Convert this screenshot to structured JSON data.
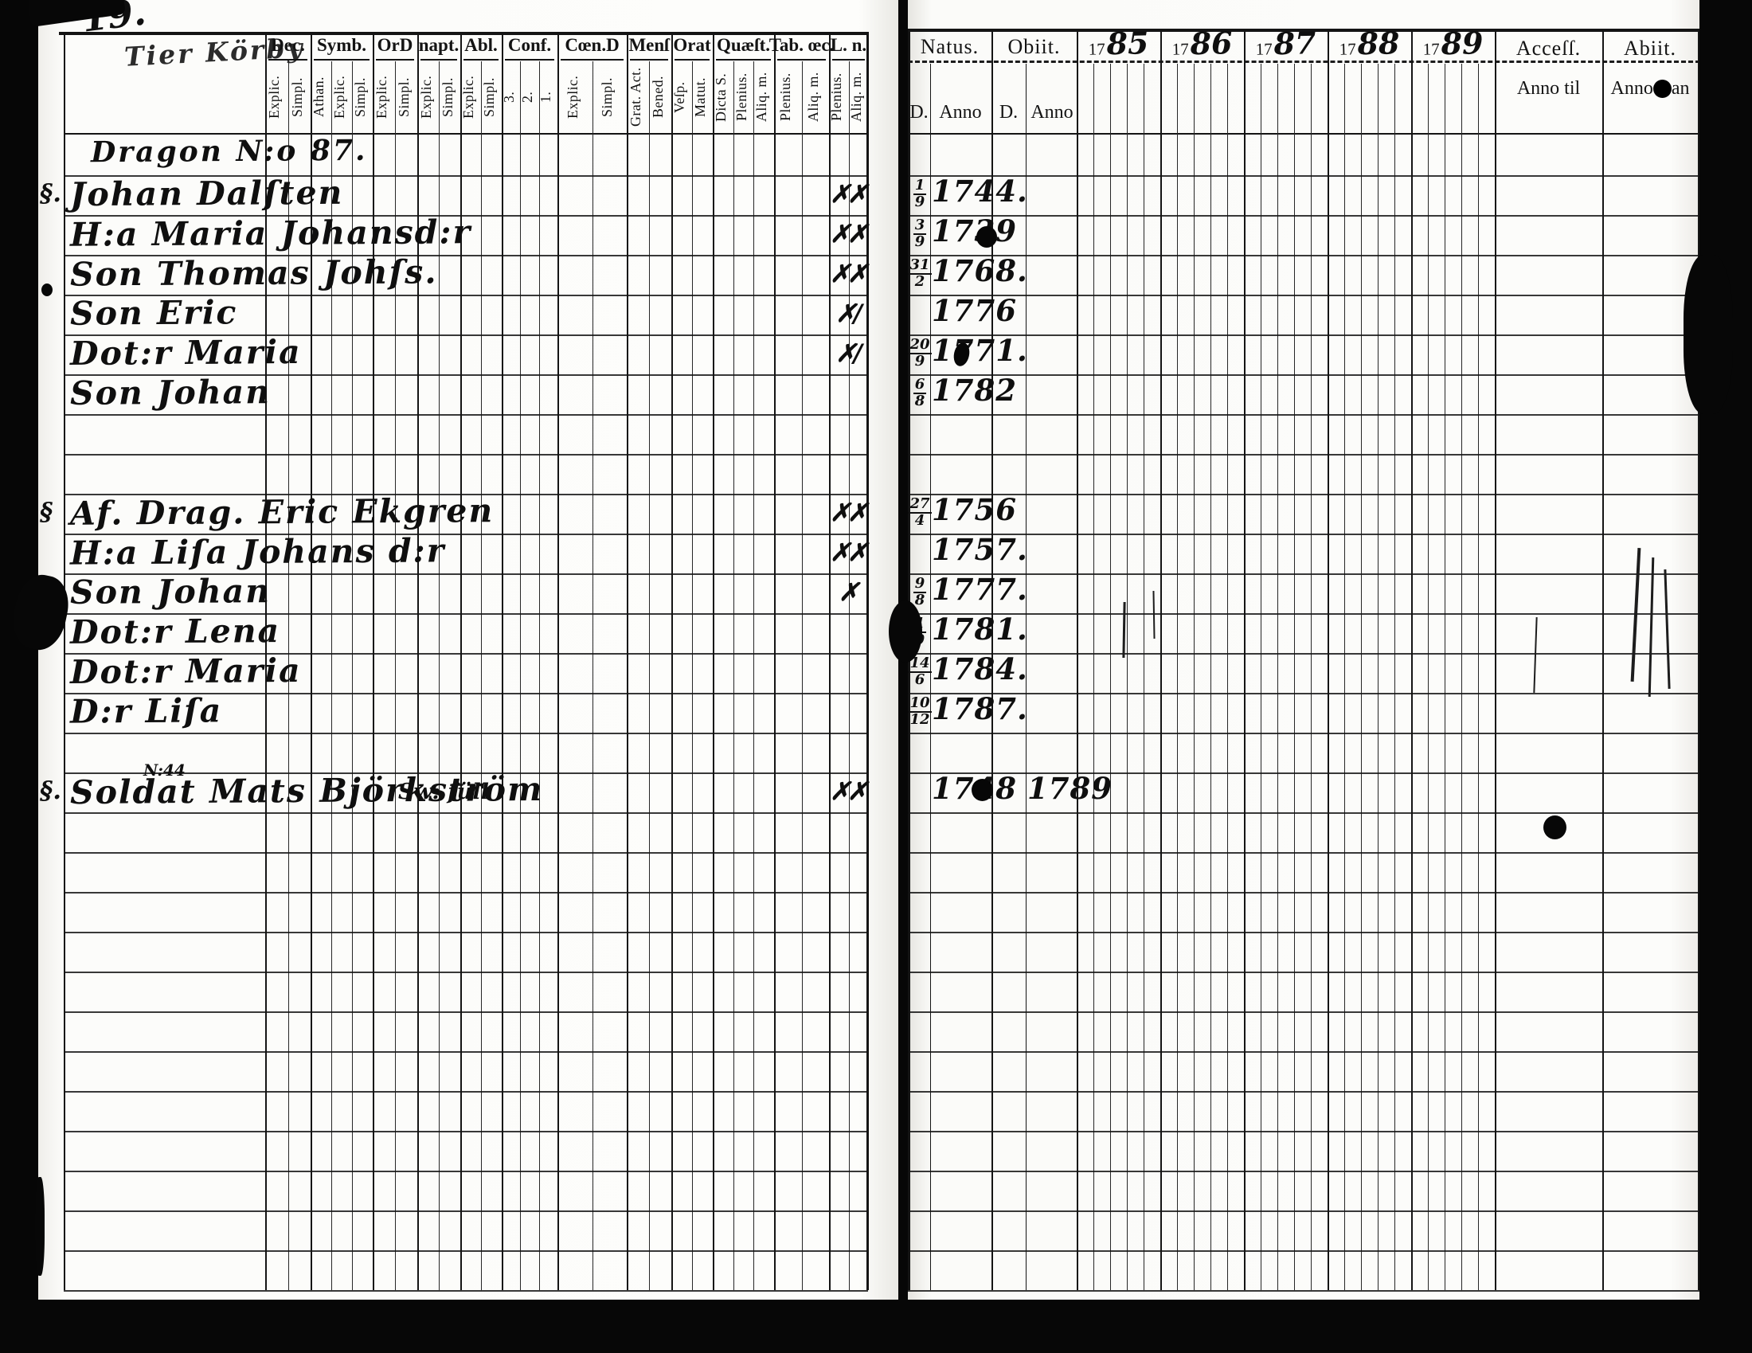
{
  "document": {
    "page_number": "19."
  },
  "left_page": {
    "script_title": "Tier Körby",
    "column_groups": [
      {
        "label": "Dec.",
        "subs": [
          "Explic.",
          "Simpl."
        ]
      },
      {
        "label": "Symb.",
        "subs": [
          "Athan.",
          "Explic.",
          "Simpl."
        ]
      },
      {
        "label": "OrD",
        "subs": [
          "Explic.",
          "Simpl."
        ]
      },
      {
        "label": "napt.",
        "subs": [
          "Explic.",
          "Simpl."
        ]
      },
      {
        "label": "Abl.",
        "subs": [
          "Explic.",
          "Simpl."
        ]
      },
      {
        "label": "Conf.",
        "subs": [
          "3.",
          "2.",
          "1."
        ]
      },
      {
        "label": "Cœn.D",
        "subs": [
          "Explic.",
          "Simpl."
        ]
      },
      {
        "label": "Menſ",
        "subs": [
          "Grat. Act.",
          "Bened."
        ]
      },
      {
        "label": "Orat",
        "subs": [
          "Veſp.",
          "Matut."
        ]
      },
      {
        "label": "Quæſt.",
        "subs": [
          "Dicta S.",
          "Plenius.",
          "Aliq. m."
        ]
      },
      {
        "label": "Tab. œc.",
        "subs": [
          "Plenius.",
          "Aliq. m."
        ]
      },
      {
        "label": "L. n.",
        "subs": [
          "Plenius.",
          "Aliq. m."
        ]
      }
    ],
    "entries": [
      {
        "row": 0,
        "name": "Dragon N:o 87."
      },
      {
        "row": 1,
        "margin": "§.",
        "name": "Johan Dalſten",
        "ln": "✗✗",
        "natus_d": "1/9",
        "natus_anno": "1744."
      },
      {
        "row": 2,
        "name": "H:a Maria Johansd:r",
        "ln": "✗✗",
        "natus_d": "3/9",
        "natus_anno": "1739"
      },
      {
        "row": 3,
        "name": "Son Thomas Johſs.",
        "ln": "✗✗",
        "natus_d": "31/2",
        "natus_anno": "1768."
      },
      {
        "row": 4,
        "name": "Son Eric",
        "ln": "✗/",
        "natus_anno": "1776"
      },
      {
        "row": 5,
        "name": "Dot:r Maria",
        "ln": "✗/",
        "natus_d": "20/9",
        "natus_anno": "1771."
      },
      {
        "row": 6,
        "name": "Son Johan",
        "natus_d": "6/8",
        "natus_anno": "1782"
      },
      {
        "row": 9,
        "margin": "§",
        "name": "Af. Drag. Eric Ekgren",
        "ln": "✗✗",
        "natus_d": "27/4",
        "natus_anno": "1756"
      },
      {
        "row": 10,
        "name": "H:a Liſa Johans d:r",
        "ln": "✗✗",
        "natus_anno": "1757."
      },
      {
        "row": 11,
        "name": "Son Johan",
        "ln": "✗",
        "natus_d": "9/8",
        "natus_anno": "1777."
      },
      {
        "row": 12,
        "name": "Dot:r Lena",
        "natus_d": "1/9",
        "natus_anno": "1781."
      },
      {
        "row": 13,
        "name": "Dot:r Maria",
        "natus_d": "14/6",
        "natus_anno": "1784."
      },
      {
        "row": 14,
        "name": "D:r Liſa",
        "natus_d": "10/12",
        "natus_anno": "1787."
      },
      {
        "row": 16,
        "margin": "§.",
        "name": "Soldat Mats Björkström",
        "name_super": "N:44",
        "annotation": "Sw: füll",
        "ln": "✗✗",
        "natus_anno": "1748",
        "obiit_anno": "1789"
      }
    ]
  },
  "right_page": {
    "natus": {
      "label": "Natus.",
      "day": "D.",
      "anno": "Anno"
    },
    "obiit": {
      "label": "Obiit.",
      "day": "D.",
      "anno": "Anno"
    },
    "years": [
      "1785",
      "1786",
      "1787",
      "1788",
      "1789"
    ],
    "accessi": {
      "label": "Acceſſ.",
      "sub": "Anno til"
    },
    "abiit": {
      "label": "Abiit.",
      "sub_left": "Anno",
      "sub_right": "an"
    }
  }
}
